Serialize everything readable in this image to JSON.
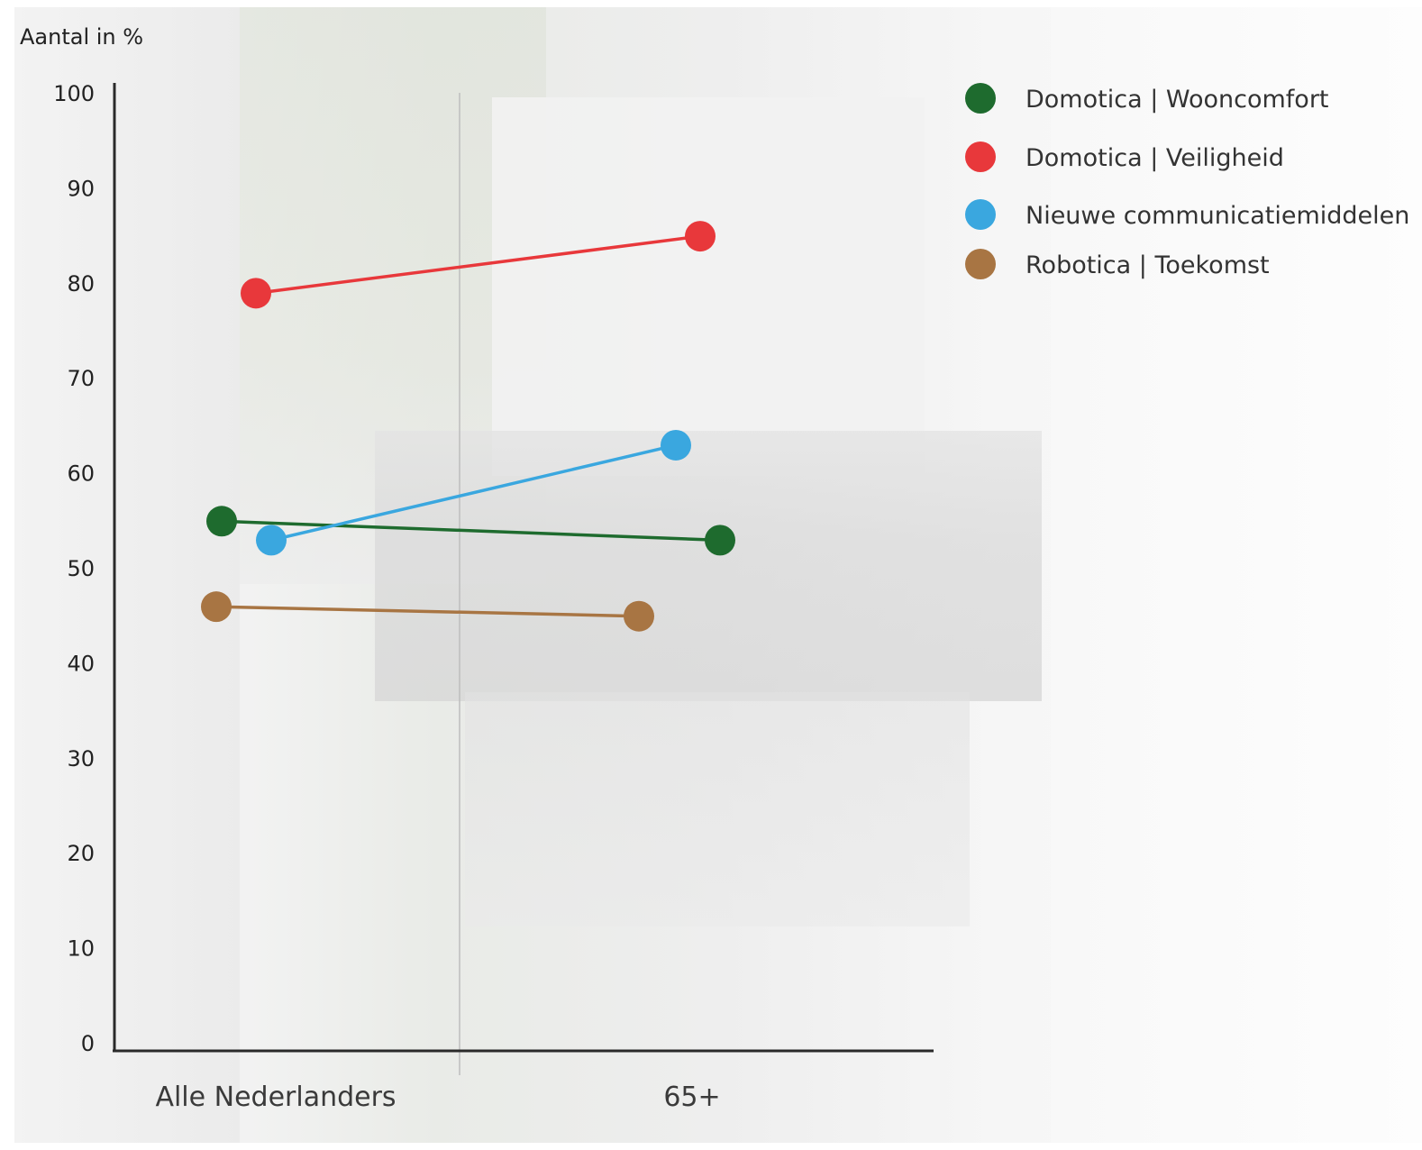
{
  "chart_data": {
    "type": "line",
    "title": "",
    "ylabel": "Aantal in %",
    "xlabel": "",
    "categories": [
      "Alle Nederlanders",
      "65+"
    ],
    "ylim": [
      0,
      100
    ],
    "yticks": [
      0,
      10,
      20,
      30,
      40,
      50,
      60,
      70,
      80,
      90,
      100
    ],
    "grid": false,
    "legend_position": "top-right",
    "series": [
      {
        "name": "Domotica | Wooncomfort",
        "color": "#1e6b2e",
        "values": [
          55,
          53
        ]
      },
      {
        "name": "Domotica | Veiligheid",
        "color": "#e8383b",
        "values": [
          79,
          85
        ]
      },
      {
        "name": "Nieuwe communicatiemiddelen",
        "color": "#3aa7df",
        "values": [
          53,
          63
        ]
      },
      {
        "name": "Robotica | Toekomst",
        "color": "#a87543",
        "values": [
          46,
          45
        ]
      }
    ]
  }
}
